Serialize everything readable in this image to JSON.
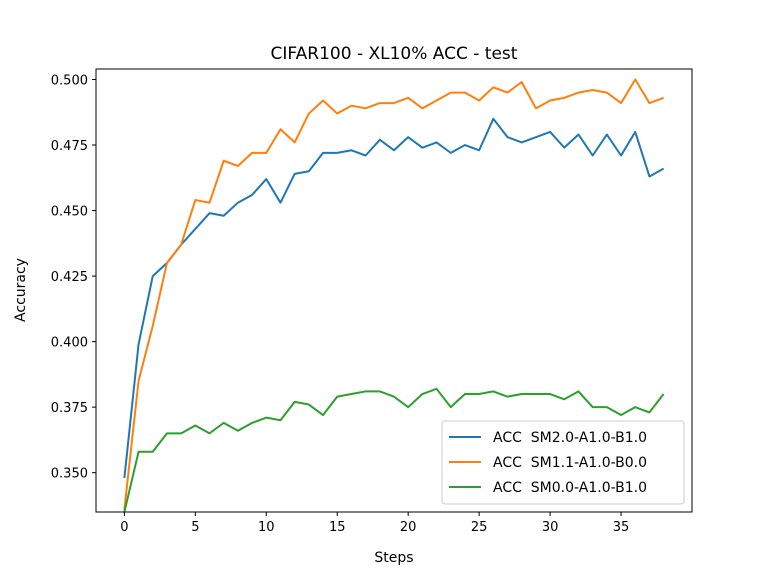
{
  "chart_data": {
    "type": "line",
    "title": "CIFAR100 - XL10% ACC - test",
    "xlabel": "Steps",
    "ylabel": "Accuracy",
    "xlim": [
      -2,
      40
    ],
    "ylim": [
      0.335,
      0.504
    ],
    "xticks": [
      "0",
      "5",
      "10",
      "15",
      "20",
      "25",
      "30",
      "35"
    ],
    "yticks": [
      "0.350",
      "0.375",
      "0.400",
      "0.425",
      "0.450",
      "0.475",
      "0.500"
    ],
    "legend_position": "lower-right",
    "x": [
      0,
      1,
      2,
      3,
      4,
      5,
      6,
      7,
      8,
      9,
      10,
      11,
      12,
      13,
      14,
      15,
      16,
      17,
      18,
      19,
      20,
      21,
      22,
      23,
      24,
      25,
      26,
      27,
      28,
      29,
      30,
      31,
      32,
      33,
      34,
      35,
      36,
      37,
      38
    ],
    "series": [
      {
        "name": "ACC  SM2.0-A1.0-B1.0",
        "color": "#1f77b4",
        "values": [
          0.348,
          0.399,
          0.425,
          0.43,
          0.437,
          0.443,
          0.449,
          0.448,
          0.453,
          0.456,
          0.462,
          0.453,
          0.464,
          0.465,
          0.472,
          0.472,
          0.473,
          0.471,
          0.477,
          0.473,
          0.478,
          0.474,
          0.476,
          0.472,
          0.475,
          0.473,
          0.485,
          0.478,
          0.476,
          0.478,
          0.48,
          0.474,
          0.479,
          0.471,
          0.479,
          0.471,
          0.48,
          0.463,
          0.466
        ]
      },
      {
        "name": "ACC  SM1.1-A1.0-B0.0",
        "color": "#ff7f0e",
        "values": [
          0.336,
          0.385,
          0.406,
          0.43,
          0.437,
          0.454,
          0.453,
          0.469,
          0.467,
          0.472,
          0.472,
          0.481,
          0.476,
          0.487,
          0.492,
          0.487,
          0.49,
          0.489,
          0.491,
          0.491,
          0.493,
          0.489,
          0.492,
          0.495,
          0.495,
          0.492,
          0.497,
          0.495,
          0.499,
          0.489,
          0.492,
          0.493,
          0.495,
          0.496,
          0.495,
          0.491,
          0.5,
          0.491,
          0.493
        ]
      },
      {
        "name": "ACC  SM0.0-A1.0-B1.0",
        "color": "#2ca02c",
        "values": [
          0.335,
          0.358,
          0.358,
          0.365,
          0.365,
          0.368,
          0.365,
          0.369,
          0.366,
          0.369,
          0.371,
          0.37,
          0.377,
          0.376,
          0.372,
          0.379,
          0.38,
          0.381,
          0.381,
          0.379,
          0.375,
          0.38,
          0.382,
          0.375,
          0.38,
          0.38,
          0.381,
          0.379,
          0.38,
          0.38,
          0.38,
          0.378,
          0.381,
          0.375,
          0.375,
          0.372,
          0.375,
          0.373,
          0.38
        ]
      }
    ]
  }
}
